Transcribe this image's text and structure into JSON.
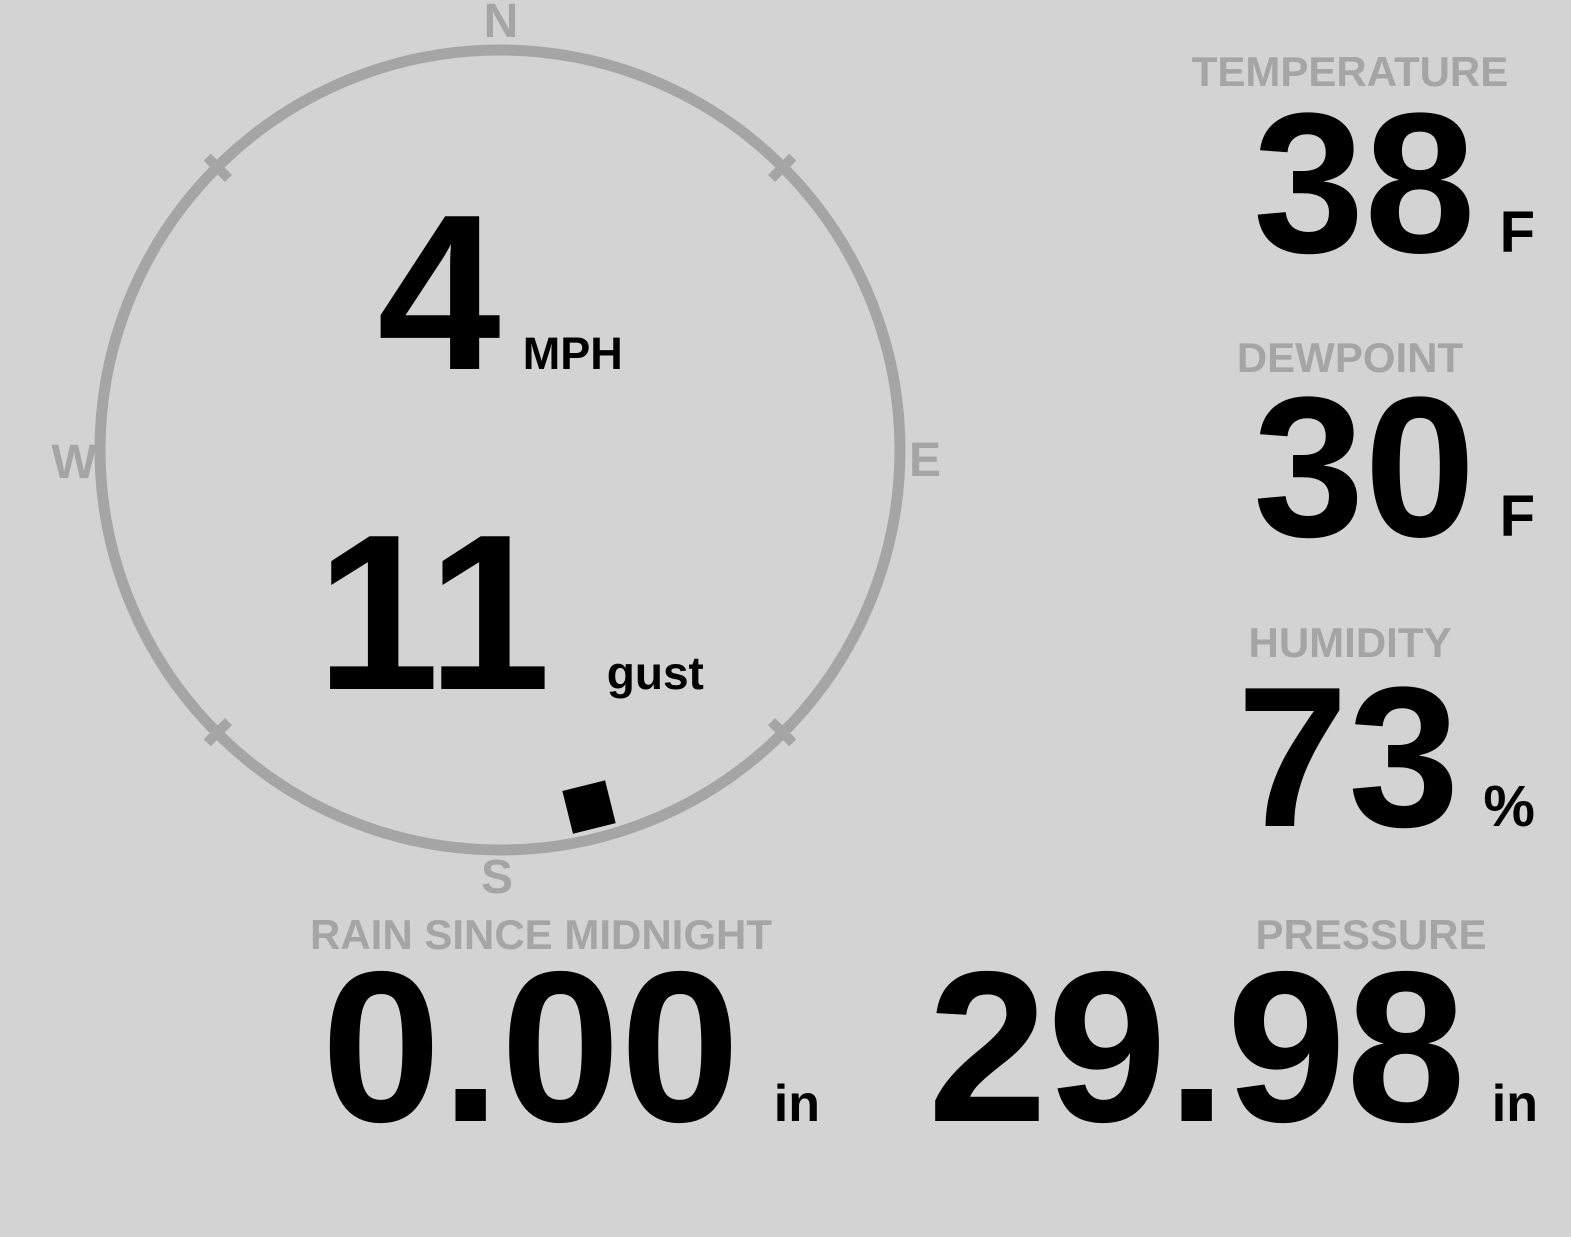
{
  "colors": {
    "background": "#d3d3d3",
    "muted_gray": "#a5a5a5",
    "value_text": "#000000"
  },
  "compass": {
    "cardinals": {
      "n": "N",
      "e": "E",
      "s": "S",
      "w": "W"
    },
    "speed": {
      "value": "4",
      "unit": "MPH"
    },
    "gust": {
      "value": "11",
      "unit": "gust"
    },
    "wind_direction_deg": 166,
    "tick_bearings_deg": [
      45,
      135,
      225,
      315
    ]
  },
  "readings": {
    "temperature": {
      "label": "TEMPERATURE",
      "value": "38",
      "unit": "F"
    },
    "dewpoint": {
      "label": "DEWPOINT",
      "value": "30",
      "unit": "F"
    },
    "humidity": {
      "label": "HUMIDITY",
      "value": "73",
      "unit": "%"
    },
    "rain": {
      "label": "RAIN SINCE MIDNIGHT",
      "value": "0.00",
      "unit": "in"
    },
    "pressure": {
      "label": "PRESSURE",
      "value": "29.98",
      "unit": "in"
    }
  }
}
